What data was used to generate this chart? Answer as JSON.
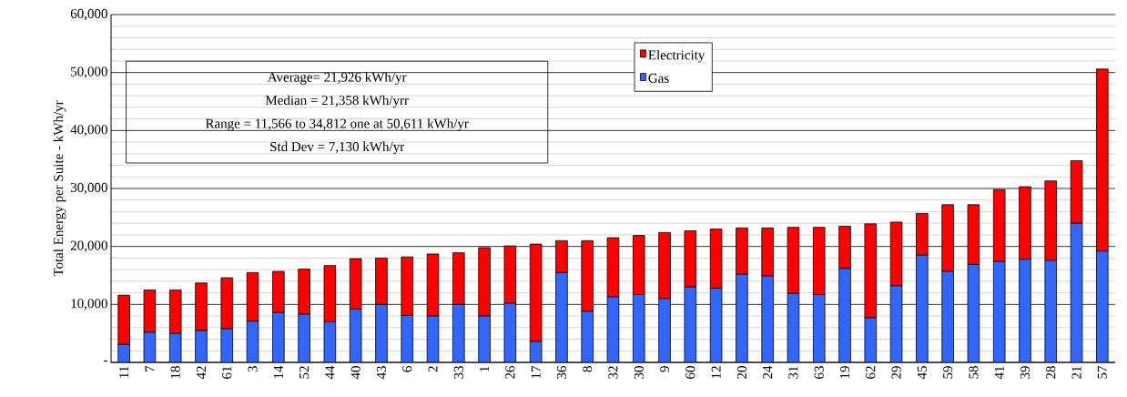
{
  "chart_data": {
    "type": "bar",
    "stacked": true,
    "ylabel": "Total Energy per Suite - kWh/yr",
    "categories": [
      "11",
      "7",
      "18",
      "42",
      "61",
      "3",
      "14",
      "52",
      "44",
      "40",
      "43",
      "6",
      "2",
      "33",
      "1",
      "26",
      "17",
      "36",
      "8",
      "32",
      "30",
      "9",
      "60",
      "12",
      "20",
      "24",
      "31",
      "63",
      "19",
      "62",
      "29",
      "45",
      "59",
      "58",
      "41",
      "39",
      "28",
      "21",
      "57"
    ],
    "series": [
      {
        "name": "Gas",
        "color": "#3366ff",
        "values": [
          3100,
          5200,
          5000,
          5500,
          5800,
          7100,
          8600,
          8300,
          7000,
          9200,
          10000,
          8100,
          8000,
          10000,
          8000,
          10200,
          3600,
          15500,
          8800,
          11300,
          11700,
          11000,
          13000,
          12800,
          15200,
          14900,
          11900,
          11700,
          16200,
          7700,
          13200,
          18500,
          15700,
          16900,
          17400,
          17800,
          17600,
          24000,
          19200
        ]
      },
      {
        "name": "Electricity",
        "color": "#ff0000",
        "values": [
          8500,
          7300,
          7500,
          8200,
          8800,
          8400,
          7100,
          7800,
          9700,
          8700,
          8000,
          10100,
          10700,
          8900,
          11800,
          9900,
          16800,
          5500,
          12200,
          10200,
          10200,
          11400,
          9700,
          10200,
          8000,
          8300,
          11400,
          11600,
          7300,
          16200,
          11000,
          7200,
          11500,
          10300,
          12400,
          12500,
          13700,
          10800,
          31400
        ]
      }
    ],
    "ylim": [
      0,
      60000
    ],
    "yticks": [
      {
        "value": 0,
        "label": "-"
      },
      {
        "value": 10000,
        "label": "10,000"
      },
      {
        "value": 20000,
        "label": "20,000"
      },
      {
        "value": 30000,
        "label": "30,000"
      },
      {
        "value": 40000,
        "label": "40,000"
      },
      {
        "value": 50000,
        "label": "50,000"
      },
      {
        "value": 60000,
        "label": "60,000"
      }
    ],
    "grid": "y",
    "legend": "top",
    "annotations": [
      "Average= 21,926 kWh/yr",
      "Median = 21,358 kWh/yrr",
      "Range = 11,566 to 34,812 one at 50,611 kWh/yr",
      "Std Dev = 7,130 kWh/yr"
    ]
  }
}
